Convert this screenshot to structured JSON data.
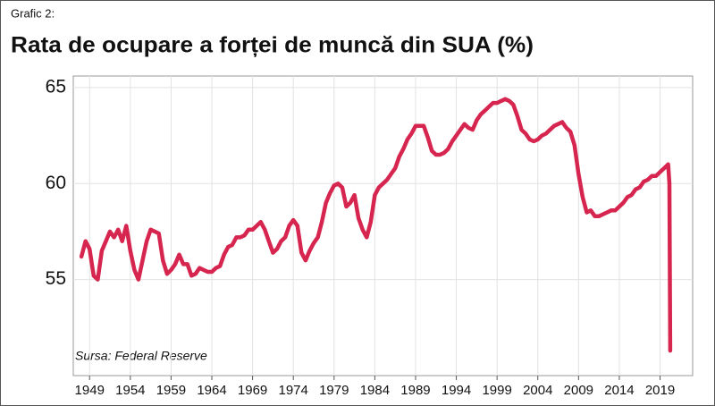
{
  "chart_data": {
    "type": "line",
    "subtitle": "Grafic 2:",
    "title": "Rata de ocupare a forței de muncă din SUA (%)",
    "annotation": "Sursa: Federal Reserve",
    "x": [
      1948,
      1948.5,
      1949,
      1949.5,
      1950,
      1950.5,
      1951,
      1951.5,
      1952,
      1952.5,
      1953,
      1953.5,
      1954,
      1954.5,
      1955,
      1955.5,
      1956,
      1956.5,
      1957,
      1957.5,
      1958,
      1958.5,
      1959,
      1959.5,
      1960,
      1960.5,
      1961,
      1961.5,
      1962,
      1962.5,
      1963,
      1963.5,
      1964,
      1964.5,
      1965,
      1965.5,
      1966,
      1966.5,
      1967,
      1967.5,
      1968,
      1968.5,
      1969,
      1969.5,
      1970,
      1970.5,
      1971,
      1971.5,
      1972,
      1972.5,
      1973,
      1973.5,
      1974,
      1974.5,
      1975,
      1975.5,
      1976,
      1976.5,
      1977,
      1977.5,
      1978,
      1978.5,
      1979,
      1979.5,
      1980,
      1980.5,
      1981,
      1981.5,
      1982,
      1982.5,
      1983,
      1983.5,
      1984,
      1984.5,
      1985,
      1985.5,
      1986,
      1986.5,
      1987,
      1987.5,
      1988,
      1988.5,
      1989,
      1989.5,
      1990,
      1990.5,
      1991,
      1991.5,
      1992,
      1992.5,
      1993,
      1993.5,
      1994,
      1994.5,
      1995,
      1995.5,
      1996,
      1996.5,
      1997,
      1997.5,
      1998,
      1998.5,
      1999,
      1999.5,
      2000,
      2000.5,
      2001,
      2001.5,
      2002,
      2002.5,
      2003,
      2003.5,
      2004,
      2004.5,
      2005,
      2005.5,
      2006,
      2006.5,
      2007,
      2007.5,
      2008,
      2008.5,
      2009,
      2009.5,
      2010,
      2010.5,
      2011,
      2011.5,
      2012,
      2012.5,
      2013,
      2013.5,
      2014,
      2014.5,
      2015,
      2015.5,
      2016,
      2016.5,
      2017,
      2017.5,
      2018,
      2018.5,
      2019,
      2019.5,
      2020,
      2020.15,
      2020.25
    ],
    "series": [
      {
        "name": "Rata de ocupare",
        "color": "#d6254f",
        "values": [
          56.2,
          57.0,
          56.6,
          55.2,
          55.0,
          56.5,
          57.0,
          57.5,
          57.2,
          57.6,
          57.0,
          57.8,
          56.5,
          55.5,
          55.0,
          56.0,
          57.0,
          57.6,
          57.5,
          57.4,
          56.0,
          55.3,
          55.5,
          55.8,
          56.3,
          55.8,
          55.8,
          55.2,
          55.3,
          55.6,
          55.5,
          55.4,
          55.4,
          55.6,
          55.7,
          56.3,
          56.7,
          56.8,
          57.2,
          57.2,
          57.3,
          57.6,
          57.6,
          57.8,
          58.0,
          57.6,
          57.0,
          56.4,
          56.6,
          57.0,
          57.2,
          57.8,
          58.1,
          57.8,
          56.4,
          56.0,
          56.5,
          56.9,
          57.2,
          58.0,
          59.0,
          59.5,
          59.9,
          60.0,
          59.8,
          58.8,
          59.0,
          59.4,
          58.2,
          57.6,
          57.2,
          58.0,
          59.4,
          59.8,
          60.0,
          60.2,
          60.5,
          60.8,
          61.4,
          61.8,
          62.3,
          62.6,
          63.0,
          63.0,
          63.0,
          62.4,
          61.7,
          61.5,
          61.5,
          61.6,
          61.8,
          62.2,
          62.5,
          62.8,
          63.1,
          62.9,
          62.8,
          63.3,
          63.6,
          63.8,
          64.0,
          64.2,
          64.2,
          64.3,
          64.4,
          64.3,
          64.1,
          63.5,
          62.8,
          62.6,
          62.3,
          62.2,
          62.3,
          62.5,
          62.6,
          62.8,
          63.0,
          63.1,
          63.2,
          62.9,
          62.7,
          62.0,
          60.5,
          59.3,
          58.5,
          58.6,
          58.3,
          58.3,
          58.4,
          58.5,
          58.6,
          58.6,
          58.8,
          59.0,
          59.3,
          59.4,
          59.7,
          59.8,
          60.1,
          60.2,
          60.4,
          60.4,
          60.6,
          60.8,
          61.0,
          60.0,
          51.3
        ]
      }
    ],
    "xlim": [
      1947,
      2023
    ],
    "xticks": [
      1949,
      1954,
      1959,
      1964,
      1969,
      1974,
      1979,
      1984,
      1989,
      1994,
      1999,
      2004,
      2009,
      2014,
      2019
    ],
    "ylim": [
      50,
      65.6
    ],
    "yticks": [
      55,
      60,
      65
    ],
    "grid": true
  }
}
